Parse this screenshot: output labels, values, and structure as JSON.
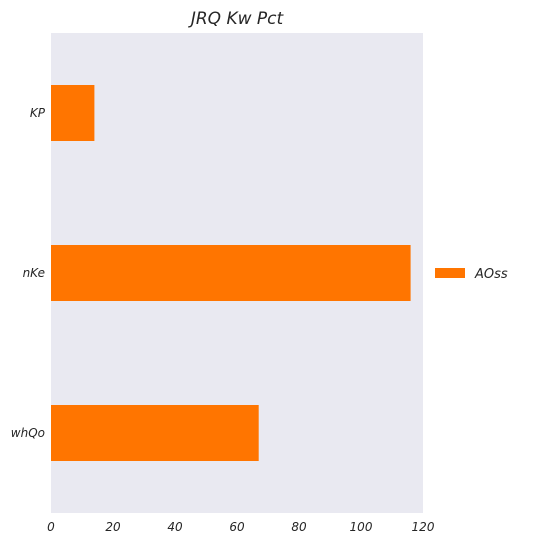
{
  "chart_data": {
    "type": "bar",
    "orientation": "horizontal",
    "title": "JRQ  Kw  Pct",
    "xlabel": "",
    "ylabel": "",
    "categories": [
      "KP",
      "nKe",
      "whQo"
    ],
    "series": [
      {
        "name": "AOss",
        "values": [
          14,
          116,
          67
        ]
      }
    ],
    "xlim": [
      0,
      120
    ],
    "xticks": [
      0,
      20,
      40,
      60,
      80,
      100,
      120
    ],
    "grid": false,
    "legend": "right",
    "colors": {
      "bar": "#ff7500",
      "plot_background": "#e9e9f1",
      "text": "#262626"
    }
  }
}
